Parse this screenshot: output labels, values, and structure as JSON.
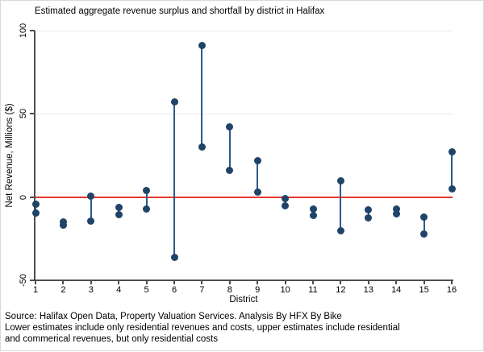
{
  "chart_data": {
    "type": "scatter",
    "subtype": "vertical-range-plot",
    "title": "Estimated aggregate revenue surplus and shortfall by district in Halifax",
    "xlabel": "District",
    "ylabel": "Net Revenue, Millions ($)",
    "categories": [
      "1",
      "2",
      "3",
      "4",
      "5",
      "6",
      "7",
      "8",
      "9",
      "10",
      "11",
      "12",
      "13",
      "14",
      "15",
      "16"
    ],
    "series": [
      {
        "name": "lower_estimate",
        "values": [
          -9.5,
          -17,
          -14.5,
          -10.5,
          -7,
          -36,
          30,
          16,
          3,
          -5,
          -11,
          -20,
          -12.5,
          -10,
          -22,
          5
        ]
      },
      {
        "name": "upper_estimate",
        "values": [
          -4.5,
          -15,
          0.5,
          -6,
          4,
          57,
          91,
          42,
          22,
          -1,
          -7,
          10,
          -7.5,
          -7,
          -12,
          27
        ]
      }
    ],
    "ylim": [
      -50,
      100
    ],
    "yticks": [
      100,
      50,
      0,
      -50
    ],
    "gridline_values": [
      100,
      50
    ],
    "zero_reference_line": 0,
    "legend": "none",
    "colors": {
      "marker": "#1f4468",
      "spike": "#2d5a87",
      "zero_line": "#e8372e",
      "gridline": "#ebebeb",
      "axis": "#4d4d4d"
    }
  },
  "footer": {
    "line1": "Source: Halifax Open Data, Property Valuation Services. Analysis By HFX By Bike",
    "line2": "Lower estimates include only residential revenues and costs, upper estimates include residential",
    "line3": "and commerical revenues, but only residential costs"
  }
}
